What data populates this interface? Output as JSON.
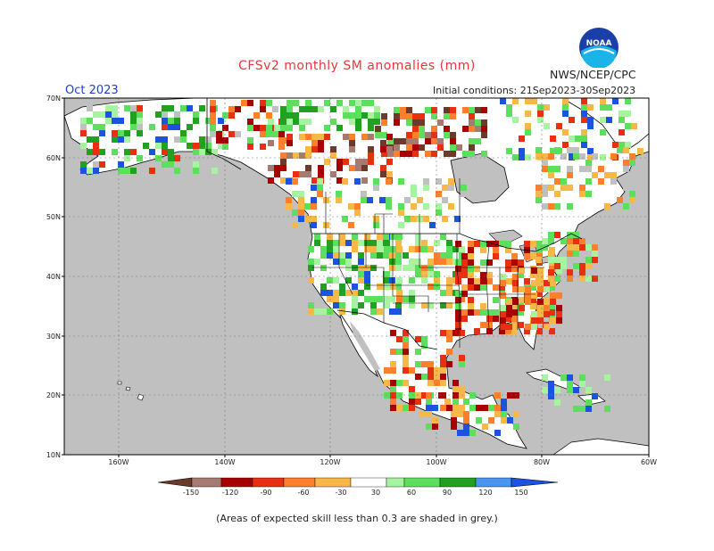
{
  "header": {
    "title": "CFSv2 monthly SM anomalies (mm)",
    "month": "Oct 2023",
    "initial_conditions": "Initial conditions: 21Sep2023-30Sep2023",
    "agency": "NWS/NCEP/CPC",
    "logo_text": "NOAA"
  },
  "map": {
    "lat_labels": [
      "70N",
      "60N",
      "50N",
      "40N",
      "30N",
      "20N",
      "10N"
    ],
    "lon_labels": [
      "160W",
      "140W",
      "120W",
      "100W",
      "80W",
      "60W"
    ],
    "land_color": "#ffffff",
    "ocean_color": "#c0c0c0",
    "low_skill_color": "#c0c0c0"
  },
  "legend": {
    "ticks": [
      "-150",
      "-120",
      "-90",
      "-60",
      "-30",
      "30",
      "60",
      "90",
      "120",
      "150"
    ],
    "colors": [
      "#6b3a2a",
      "#a57a70",
      "#a80000",
      "#e83010",
      "#ff7f2a",
      "#f8b848",
      "#ffffff",
      "#a6f3a0",
      "#5cdf5c",
      "#22a022",
      "#4796ef",
      "#1b52e0"
    ]
  },
  "footer": {
    "note": "(Areas of expected skill less than 0.3 are shaded in grey.)"
  }
}
